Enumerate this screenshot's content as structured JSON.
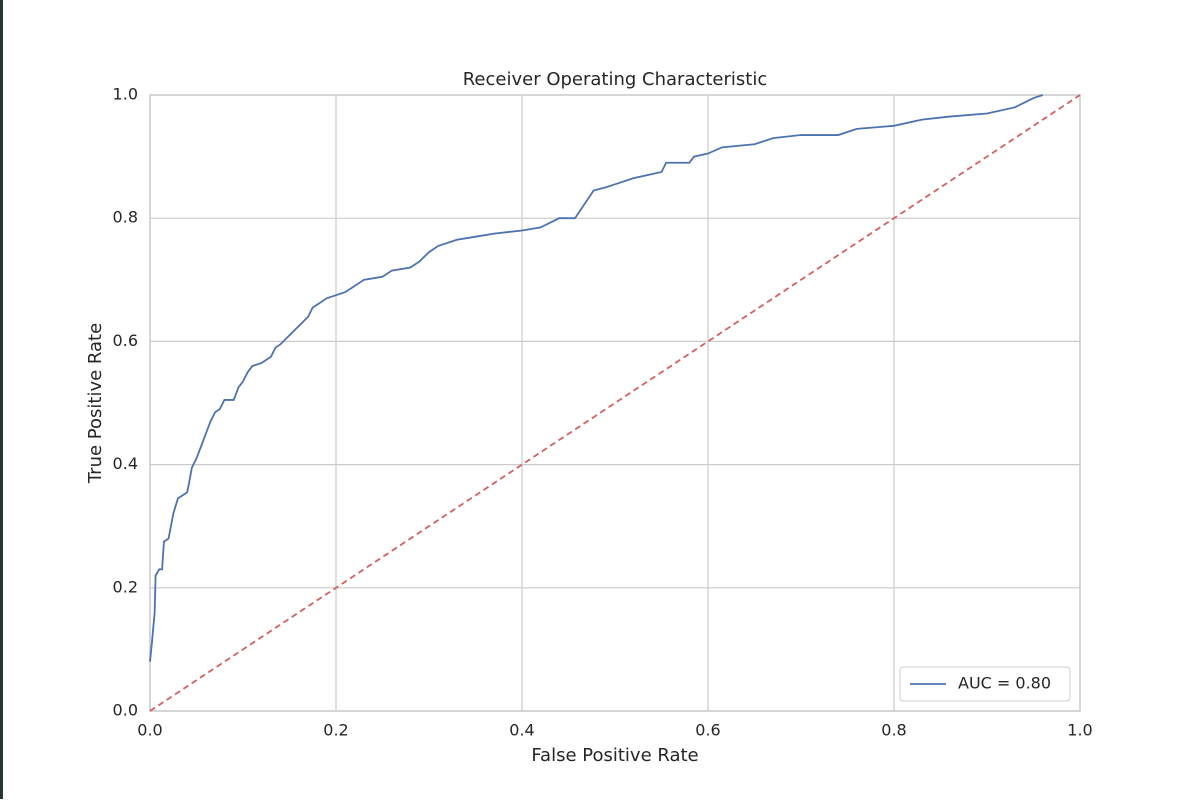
{
  "chart_data": {
    "type": "line",
    "title": "Receiver Operating Characteristic",
    "xlabel": "False Positive Rate",
    "ylabel": "True Positive Rate",
    "xlim": [
      0,
      1
    ],
    "ylim": [
      0,
      1
    ],
    "xticks": [
      {
        "value": 0,
        "label": "0.0"
      },
      0.2,
      0.4,
      0.6,
      0.8,
      {
        "value": 1,
        "label": "1.0"
      }
    ],
    "yticks": [
      {
        "value": 0,
        "label": "0.0"
      },
      0.2,
      0.4,
      0.6,
      0.8,
      {
        "value": 1,
        "label": "1.0"
      }
    ],
    "grid": true,
    "legend": "lower right",
    "series": [
      {
        "name": "AUC = 0.80",
        "color": "#4c72b0",
        "x": [
          0,
          0.002,
          0.005,
          0.006,
          0.01,
          0.013,
          0.015,
          0.02,
          0.025,
          0.03,
          0.035,
          0.04,
          0.042,
          0.045,
          0.05,
          0.055,
          0.06,
          0.065,
          0.07,
          0.075,
          0.08,
          0.09,
          0.095,
          0.1,
          0.105,
          0.11,
          0.12,
          0.13,
          0.135,
          0.14,
          0.15,
          0.16,
          0.17,
          0.175,
          0.18,
          0.19,
          0.2,
          0.21,
          0.22,
          0.23,
          0.25,
          0.26,
          0.28,
          0.29,
          0.3,
          0.31,
          0.33,
          0.35,
          0.37,
          0.4,
          0.42,
          0.44,
          0.457,
          0.477,
          0.49,
          0.5,
          0.52,
          0.55,
          0.555,
          0.58,
          0.585,
          0.6,
          0.615,
          0.65,
          0.67,
          0.7,
          0.74,
          0.76,
          0.8,
          0.83,
          0.86,
          0.9,
          0.93,
          0.95,
          0.96
        ],
        "values": [
          0.08,
          0.11,
          0.16,
          0.22,
          0.23,
          0.23,
          0.275,
          0.28,
          0.32,
          0.345,
          0.35,
          0.355,
          0.37,
          0.395,
          0.41,
          0.43,
          0.45,
          0.47,
          0.485,
          0.49,
          0.505,
          0.505,
          0.525,
          0.535,
          0.55,
          0.56,
          0.565,
          0.575,
          0.59,
          0.595,
          0.61,
          0.625,
          0.64,
          0.655,
          0.66,
          0.67,
          0.675,
          0.68,
          0.69,
          0.7,
          0.705,
          0.715,
          0.72,
          0.73,
          0.745,
          0.755,
          0.765,
          0.77,
          0.775,
          0.78,
          0.785,
          0.8,
          0.8,
          0.845,
          0.85,
          0.855,
          0.865,
          0.875,
          0.89,
          0.89,
          0.9,
          0.905,
          0.915,
          0.92,
          0.93,
          0.935,
          0.935,
          0.945,
          0.95,
          0.96,
          0.965,
          0.97,
          0.98,
          0.995,
          1
        ]
      },
      {
        "color": "#d65f5f",
        "dashed": true,
        "x": [
          0,
          1
        ],
        "values": [
          0,
          1
        ]
      }
    ]
  }
}
